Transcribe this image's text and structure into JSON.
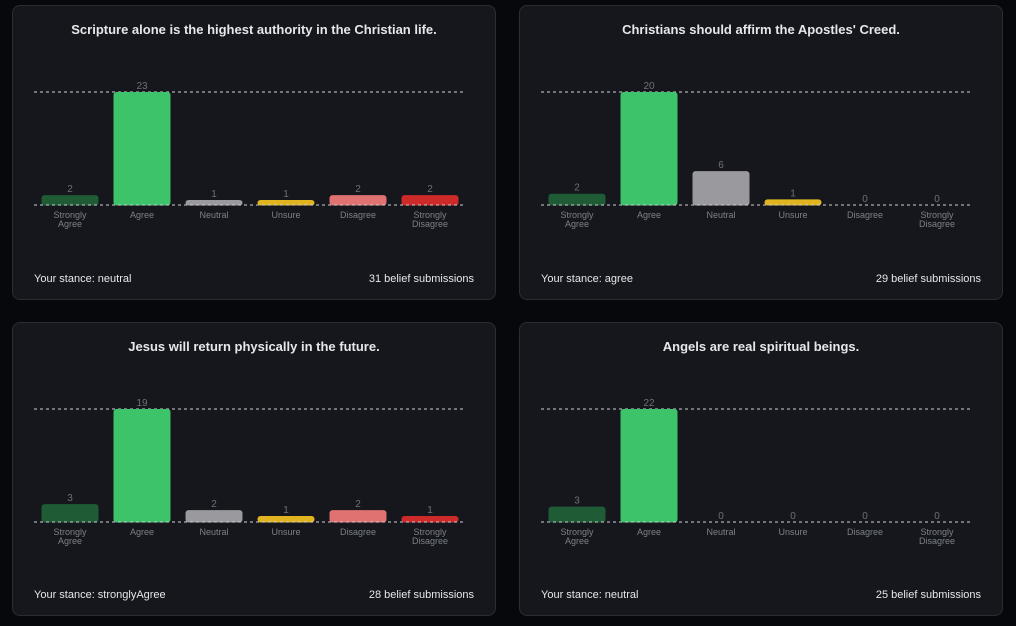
{
  "categories": [
    "Strongly Agree",
    "Agree",
    "Neutral",
    "Unsure",
    "Disagree",
    "Strongly Disagree"
  ],
  "category_lines": [
    [
      "Strongly",
      "Agree"
    ],
    [
      "Agree"
    ],
    [
      "Neutral"
    ],
    [
      "Unsure"
    ],
    [
      "Disagree"
    ],
    [
      "Strongly",
      "Disagree"
    ]
  ],
  "colors": {
    "strongly_agree": "#1f5c35",
    "agree": "#3dc46a",
    "neutral": "#9a9a9e",
    "unsure": "#e0b520",
    "disagree": "#e07272",
    "strongly_disagree": "#cf2a2a",
    "card_bg": "#15171c",
    "page_bg": "#06080c"
  },
  "cards": [
    {
      "title": "Scripture alone is the highest authority in the Christian life.",
      "stance_label": "Your stance: neutral",
      "submissions_label": "31 belief submissions"
    },
    {
      "title": "Christians should affirm the Apostles' Creed.",
      "stance_label": "Your stance: agree",
      "submissions_label": "29 belief submissions"
    },
    {
      "title": "Jesus will return physically in the future.",
      "stance_label": "Your stance: stronglyAgree",
      "submissions_label": "28 belief submissions"
    },
    {
      "title": "Angels are real spiritual beings.",
      "stance_label": "Your stance: neutral",
      "submissions_label": "25 belief submissions"
    }
  ],
  "chart_data": [
    {
      "type": "bar",
      "title": "Scripture alone is the highest authority in the Christian life.",
      "categories": [
        "Strongly Agree",
        "Agree",
        "Neutral",
        "Unsure",
        "Disagree",
        "Strongly Disagree"
      ],
      "values": [
        2,
        23,
        1,
        1,
        2,
        2
      ],
      "grid": "dashed line at max value and baseline"
    },
    {
      "type": "bar",
      "title": "Christians should affirm the Apostles' Creed.",
      "categories": [
        "Strongly Agree",
        "Agree",
        "Neutral",
        "Unsure",
        "Disagree",
        "Strongly Disagree"
      ],
      "values": [
        2,
        20,
        6,
        1,
        0,
        0
      ],
      "grid": "dashed line at max value and baseline"
    },
    {
      "type": "bar",
      "title": "Jesus will return physically in the future.",
      "categories": [
        "Strongly Agree",
        "Agree",
        "Neutral",
        "Unsure",
        "Disagree",
        "Strongly Disagree"
      ],
      "values": [
        3,
        19,
        2,
        1,
        2,
        1
      ],
      "grid": "dashed line at max value and baseline"
    },
    {
      "type": "bar",
      "title": "Angels are real spiritual beings.",
      "categories": [
        "Strongly Agree",
        "Agree",
        "Neutral",
        "Unsure",
        "Disagree",
        "Strongly Disagree"
      ],
      "values": [
        3,
        22,
        0,
        0,
        0,
        0
      ],
      "grid": "dashed line at max value and baseline"
    }
  ]
}
